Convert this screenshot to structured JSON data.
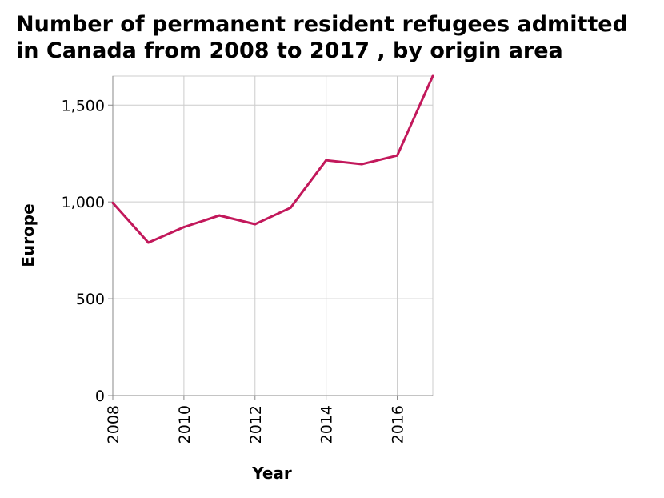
{
  "chart_data": {
    "type": "line",
    "title": "Number of permanent resident refugees admitted in Canada from 2008 to 2017 , by origin area",
    "xlabel": "Year",
    "ylabel": "Europe",
    "xlim": [
      2008,
      2017
    ],
    "ylim": [
      0,
      1650
    ],
    "x_ticks": [
      2008,
      2010,
      2012,
      2014,
      2016
    ],
    "x_tick_labels": [
      "2008",
      "2010",
      "2012",
      "2014",
      "2016"
    ],
    "y_ticks": [
      0,
      500,
      1000,
      1500
    ],
    "y_tick_labels": [
      "0",
      "500",
      "1,000",
      "1,500"
    ],
    "grid": true,
    "line_color": "#c2185b",
    "x": [
      2008,
      2009,
      2010,
      2011,
      2012,
      2013,
      2014,
      2015,
      2016,
      2017
    ],
    "series": [
      {
        "values": [
          995,
          790,
          870,
          930,
          885,
          970,
          1215,
          1195,
          1240,
          1650
        ]
      }
    ]
  }
}
